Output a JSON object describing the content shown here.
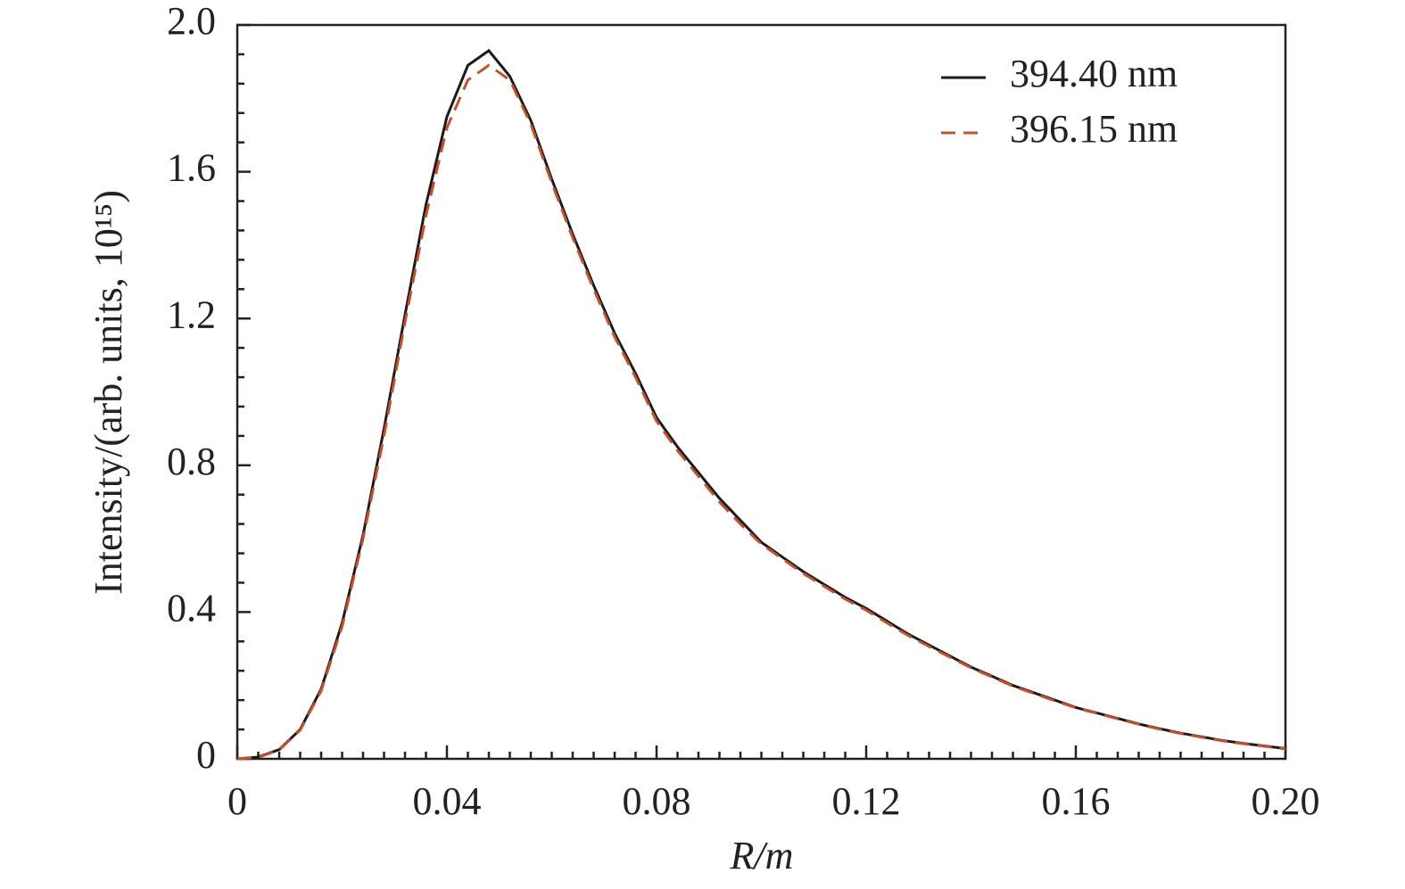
{
  "chart_data": {
    "type": "line",
    "x_label": "R/m",
    "y_label": "Intensity/(arb. units, 10¹⁵)",
    "x": [
      0,
      0.004,
      0.008,
      0.012,
      0.016,
      0.02,
      0.024,
      0.028,
      0.032,
      0.036,
      0.04,
      0.044,
      0.048,
      0.052,
      0.056,
      0.06,
      0.064,
      0.068,
      0.072,
      0.076,
      0.08,
      0.084,
      0.088,
      0.092,
      0.096,
      0.1,
      0.104,
      0.108,
      0.112,
      0.116,
      0.12,
      0.124,
      0.128,
      0.132,
      0.136,
      0.14,
      0.144,
      0.148,
      0.152,
      0.156,
      0.16,
      0.164,
      0.168,
      0.172,
      0.176,
      0.18,
      0.184,
      0.188,
      0.192,
      0.196,
      0.2
    ],
    "series": [
      {
        "name": "394.40 nm",
        "color": "#1a1a1a",
        "dash": false,
        "values": [
          0,
          0.005,
          0.025,
          0.08,
          0.19,
          0.37,
          0.61,
          0.9,
          1.21,
          1.51,
          1.75,
          1.89,
          1.93,
          1.86,
          1.74,
          1.58,
          1.43,
          1.29,
          1.16,
          1.05,
          0.93,
          0.85,
          0.78,
          0.71,
          0.65,
          0.59,
          0.55,
          0.51,
          0.475,
          0.44,
          0.41,
          0.375,
          0.34,
          0.31,
          0.28,
          0.25,
          0.225,
          0.2,
          0.18,
          0.16,
          0.14,
          0.125,
          0.11,
          0.095,
          0.082,
          0.07,
          0.06,
          0.05,
          0.042,
          0.035,
          0.028
        ]
      },
      {
        "name": "396.15 nm",
        "color": "#c0522f",
        "dash": true,
        "values": [
          0,
          0.004,
          0.024,
          0.078,
          0.185,
          0.36,
          0.6,
          0.88,
          1.19,
          1.48,
          1.72,
          1.85,
          1.89,
          1.85,
          1.73,
          1.57,
          1.42,
          1.28,
          1.15,
          1.04,
          0.92,
          0.84,
          0.77,
          0.7,
          0.64,
          0.585,
          0.545,
          0.505,
          0.47,
          0.435,
          0.405,
          0.37,
          0.336,
          0.306,
          0.277,
          0.248,
          0.223,
          0.198,
          0.178,
          0.158,
          0.139,
          0.124,
          0.109,
          0.094,
          0.081,
          0.069,
          0.059,
          0.049,
          0.041,
          0.034,
          0.027
        ]
      }
    ],
    "xlim": [
      0,
      0.2
    ],
    "ylim": [
      0,
      2
    ],
    "xticks": [
      0,
      0.04,
      0.08,
      0.12,
      0.16,
      {
        "value": 0.2,
        "label": "0.20"
      }
    ],
    "yticks": [
      0,
      0.4,
      0.8,
      1.2,
      1.6,
      {
        "value": 2,
        "label": "2.0"
      }
    ],
    "legend": "upper right"
  }
}
